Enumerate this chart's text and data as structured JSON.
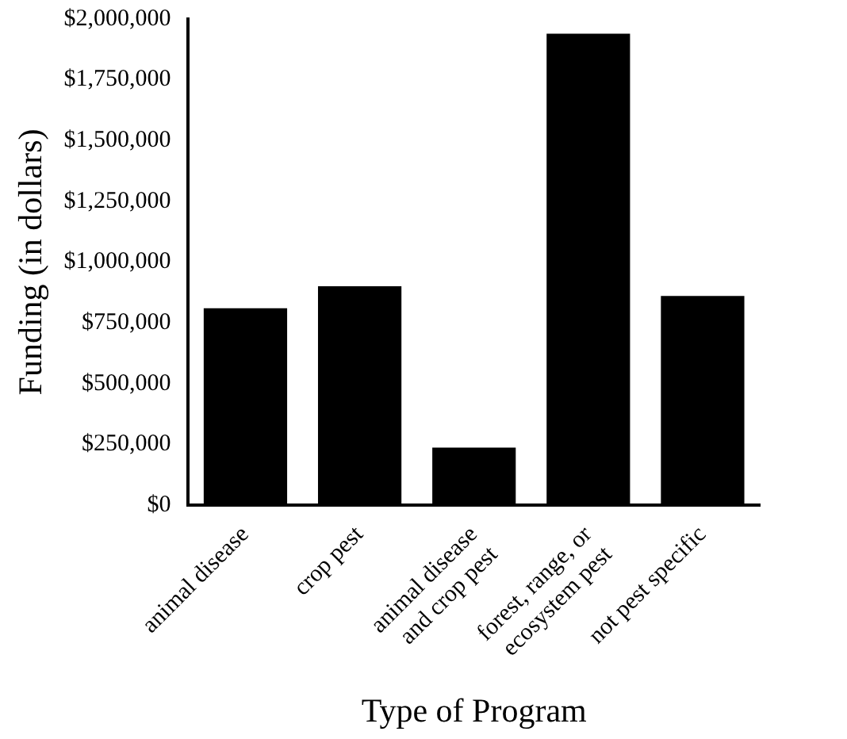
{
  "chart_data": {
    "type": "bar",
    "xlabel": "Type of Program",
    "ylabel": "Funding (in dollars)",
    "categories": [
      "animal disease",
      "crop pest",
      "animal disease and crop pest",
      "forest, range, or ecosystem pest",
      "not pest specific"
    ],
    "values": [
      810000,
      900000,
      236000,
      1940000,
      860000
    ],
    "color": "#000000",
    "ylim": [
      0,
      2000000
    ],
    "yticks": [
      {
        "value": 0,
        "label": "$0"
      },
      {
        "value": 250000,
        "label": "$250,000"
      },
      {
        "value": 500000,
        "label": "$500,000"
      },
      {
        "value": 750000,
        "label": "$750,000"
      },
      {
        "value": 1000000,
        "label": "$1,000,000"
      },
      {
        "value": 1250000,
        "label": "$1,250,000"
      },
      {
        "value": 1500000,
        "label": "$1,500,000"
      },
      {
        "value": 1750000,
        "label": "$1,750,000"
      },
      {
        "value": 2000000,
        "label": "$2,000,000"
      }
    ],
    "grid": false,
    "legend": false
  }
}
